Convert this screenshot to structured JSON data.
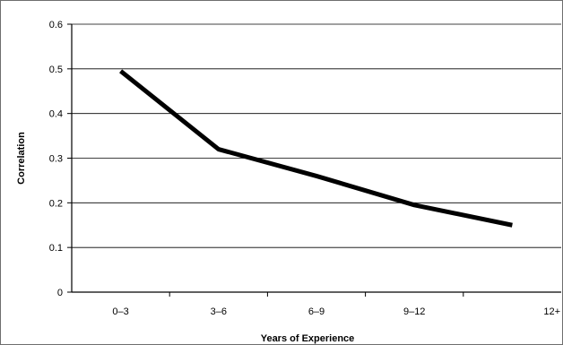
{
  "chart_data": {
    "type": "line",
    "title": "",
    "xlabel": "Years of Experience",
    "ylabel": "Correlation",
    "categories": [
      "0–3",
      "3–6",
      "6–9",
      "9–12",
      "12+"
    ],
    "series": [
      {
        "values": [
          0.495,
          0.32,
          0.26,
          0.195,
          0.15
        ],
        "color": "#000000"
      }
    ],
    "ylim": [
      0,
      0.6
    ],
    "yticks": [
      "0",
      "0.1",
      "0.2",
      "0.3",
      "0.4",
      "0.5",
      "0.6"
    ],
    "grid": true,
    "legend": "none"
  }
}
